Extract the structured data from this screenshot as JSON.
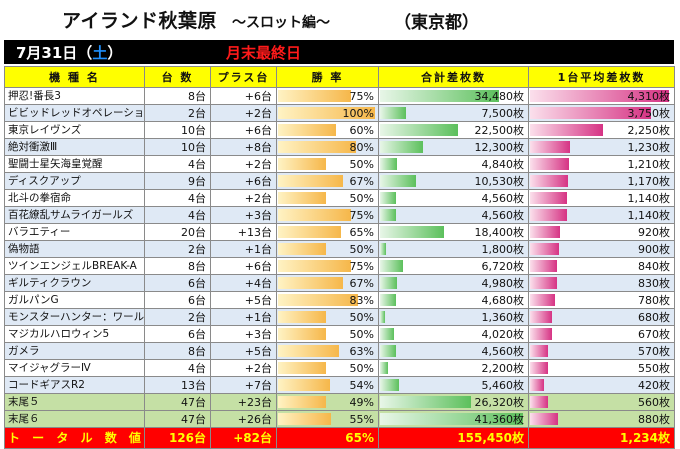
{
  "header": {
    "store": "アイランド秋葉原",
    "edition": "～スロット編～",
    "prefecture": "（東京都）",
    "date_prefix": "7月31日（",
    "weekday": "土",
    "date_suffix": "）",
    "event": "月末最終日"
  },
  "columns": [
    "機 種 名",
    "台 数",
    "プラス台",
    "勝 率",
    "合計差枚数",
    "1台平均差枚数"
  ],
  "rows": [
    {
      "name": "押忍!番長3",
      "units": "8台",
      "plus": "+6台",
      "rate": "75%",
      "rate_v": 75,
      "total": "34,480枚",
      "total_v": 34480,
      "avg": "4,310枚",
      "avg_v": 4310,
      "style": "odd"
    },
    {
      "name": "ビビッドレッドオペレーション",
      "units": "2台",
      "plus": "+2台",
      "rate": "100%",
      "rate_v": 100,
      "total": "7,500枚",
      "total_v": 7500,
      "avg": "3,750枚",
      "avg_v": 3750,
      "style": "even"
    },
    {
      "name": "東京レイヴンズ",
      "units": "10台",
      "plus": "+6台",
      "rate": "60%",
      "rate_v": 60,
      "total": "22,500枚",
      "total_v": 22500,
      "avg": "2,250枚",
      "avg_v": 2250,
      "style": "odd"
    },
    {
      "name": "絶対衝激Ⅲ",
      "units": "10台",
      "plus": "+8台",
      "rate": "80%",
      "rate_v": 80,
      "total": "12,300枚",
      "total_v": 12300,
      "avg": "1,230枚",
      "avg_v": 1230,
      "style": "even"
    },
    {
      "name": "聖闘士星矢海皇覚醒",
      "units": "4台",
      "plus": "+2台",
      "rate": "50%",
      "rate_v": 50,
      "total": "4,840枚",
      "total_v": 4840,
      "avg": "1,210枚",
      "avg_v": 1210,
      "style": "odd"
    },
    {
      "name": "ディスクアップ",
      "units": "9台",
      "plus": "+6台",
      "rate": "67%",
      "rate_v": 67,
      "total": "10,530枚",
      "total_v": 10530,
      "avg": "1,170枚",
      "avg_v": 1170,
      "style": "even"
    },
    {
      "name": "北斗の拳宿命",
      "units": "4台",
      "plus": "+2台",
      "rate": "50%",
      "rate_v": 50,
      "total": "4,560枚",
      "total_v": 4560,
      "avg": "1,140枚",
      "avg_v": 1140,
      "style": "odd"
    },
    {
      "name": "百花繚乱サムライガールズ",
      "units": "4台",
      "plus": "+3台",
      "rate": "75%",
      "rate_v": 75,
      "total": "4,560枚",
      "total_v": 4560,
      "avg": "1,140枚",
      "avg_v": 1140,
      "style": "even"
    },
    {
      "name": "バラエティー",
      "units": "20台",
      "plus": "+13台",
      "rate": "65%",
      "rate_v": 65,
      "total": "18,400枚",
      "total_v": 18400,
      "avg": "920枚",
      "avg_v": 920,
      "style": "odd"
    },
    {
      "name": "偽物語",
      "units": "2台",
      "plus": "+1台",
      "rate": "50%",
      "rate_v": 50,
      "total": "1,800枚",
      "total_v": 1800,
      "avg": "900枚",
      "avg_v": 900,
      "style": "even"
    },
    {
      "name": "ツインエンジェルBREAK-A",
      "units": "8台",
      "plus": "+6台",
      "rate": "75%",
      "rate_v": 75,
      "total": "6,720枚",
      "total_v": 6720,
      "avg": "840枚",
      "avg_v": 840,
      "style": "odd"
    },
    {
      "name": "ギルティクラウン",
      "units": "6台",
      "plus": "+4台",
      "rate": "67%",
      "rate_v": 67,
      "total": "4,980枚",
      "total_v": 4980,
      "avg": "830枚",
      "avg_v": 830,
      "style": "even"
    },
    {
      "name": "ガルパンG",
      "units": "6台",
      "plus": "+5台",
      "rate": "83%",
      "rate_v": 83,
      "total": "4,680枚",
      "total_v": 4680,
      "avg": "780枚",
      "avg_v": 780,
      "style": "odd"
    },
    {
      "name": "モンスターハンター：ワールド",
      "units": "2台",
      "plus": "+1台",
      "rate": "50%",
      "rate_v": 50,
      "total": "1,360枚",
      "total_v": 1360,
      "avg": "680枚",
      "avg_v": 680,
      "style": "even"
    },
    {
      "name": "マジカルハロウィン5",
      "units": "6台",
      "plus": "+3台",
      "rate": "50%",
      "rate_v": 50,
      "total": "4,020枚",
      "total_v": 4020,
      "avg": "670枚",
      "avg_v": 670,
      "style": "odd"
    },
    {
      "name": "ガメラ",
      "units": "8台",
      "plus": "+5台",
      "rate": "63%",
      "rate_v": 63,
      "total": "4,560枚",
      "total_v": 4560,
      "avg": "570枚",
      "avg_v": 570,
      "style": "even"
    },
    {
      "name": "マイジャグラーⅣ",
      "units": "4台",
      "plus": "+2台",
      "rate": "50%",
      "rate_v": 50,
      "total": "2,200枚",
      "total_v": 2200,
      "avg": "550枚",
      "avg_v": 550,
      "style": "odd"
    },
    {
      "name": "コードギアスR2",
      "units": "13台",
      "plus": "+7台",
      "rate": "54%",
      "rate_v": 54,
      "total": "5,460枚",
      "total_v": 5460,
      "avg": "420枚",
      "avg_v": 420,
      "style": "even"
    },
    {
      "name": "末尾５",
      "units": "47台",
      "plus": "+23台",
      "rate": "49%",
      "rate_v": 49,
      "total": "26,320枚",
      "total_v": 26320,
      "avg": "560枚",
      "avg_v": 560,
      "style": "tail"
    },
    {
      "name": "末尾６",
      "units": "47台",
      "plus": "+26台",
      "rate": "55%",
      "rate_v": 55,
      "total": "41,360枚",
      "total_v": 41360,
      "avg": "880枚",
      "avg_v": 880,
      "style": "tail"
    }
  ],
  "totals": {
    "label": "ト ー タ ル 数 値",
    "units": "126台",
    "plus": "+82台",
    "rate": "65%",
    "total": "155,450枚",
    "avg": "1,234枚"
  },
  "colors": {
    "header_fill": "#ffff00",
    "total_row": "#ff0000",
    "total_text": "#ffff00",
    "rate_bar": "#f6b74a",
    "total_bar": "#5cc05c",
    "avg_bar": "#d63384"
  }
}
